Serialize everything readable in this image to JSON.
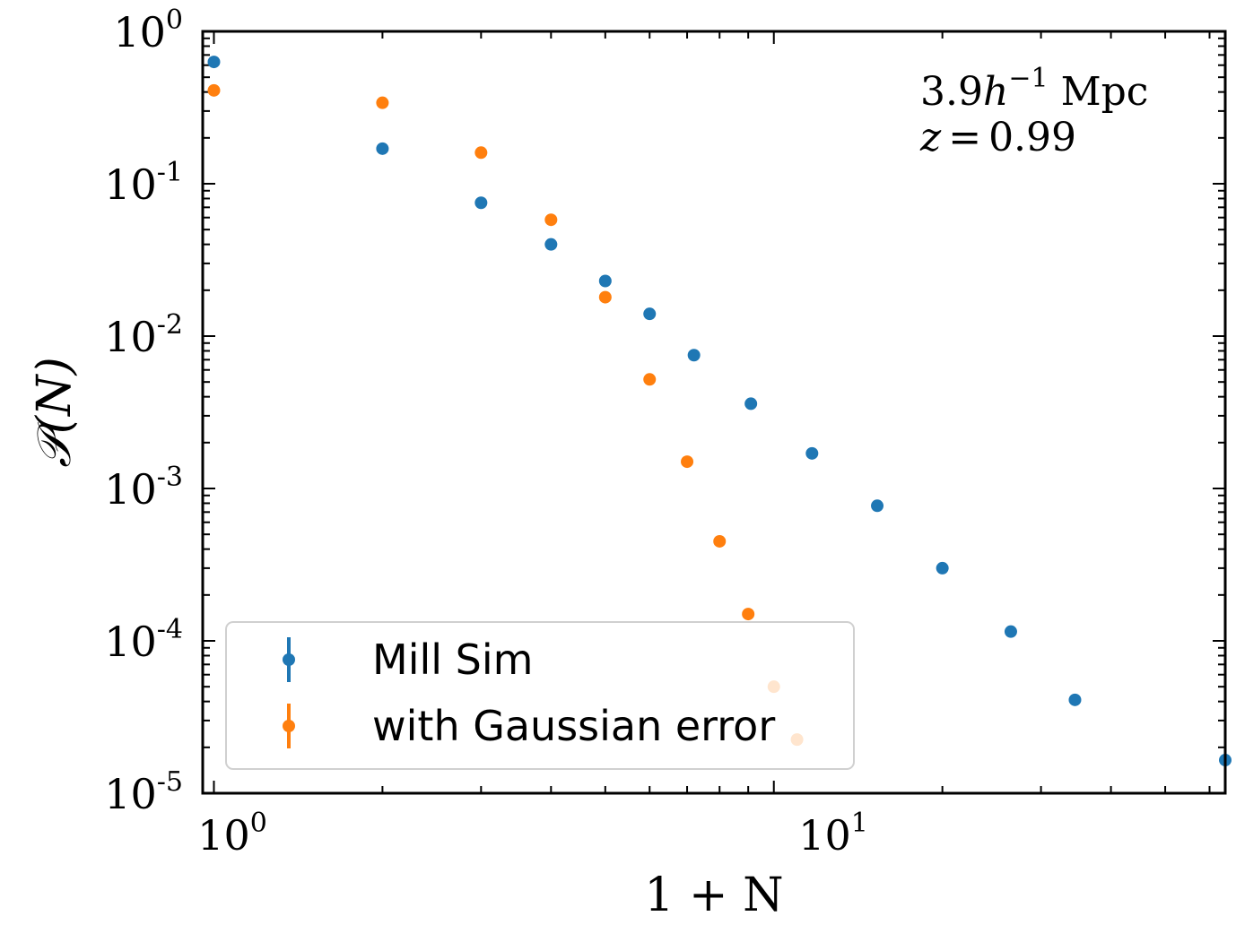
{
  "chart_data": {
    "type": "scatter",
    "xlabel": "1 + N",
    "ylabel": "𝒫(N)",
    "x_scale": "log",
    "y_scale": "log",
    "xlim": [
      0.955,
      64
    ],
    "ylim": [
      1e-05,
      1
    ],
    "x_ticks": [
      {
        "value": 1,
        "base": "10",
        "exp": "0"
      },
      {
        "value": 10,
        "base": "10",
        "exp": "1"
      }
    ],
    "y_ticks": [
      {
        "value": 1,
        "base": "10",
        "exp": "0"
      },
      {
        "value": 0.1,
        "base": "10",
        "exp": "-1"
      },
      {
        "value": 0.01,
        "base": "10",
        "exp": "-2"
      },
      {
        "value": 0.001,
        "base": "10",
        "exp": "-3"
      },
      {
        "value": 0.0001,
        "base": "10",
        "exp": "-4"
      },
      {
        "value": 1e-05,
        "base": "10",
        "exp": "-5"
      }
    ],
    "annotation": {
      "scale_value": "3.9",
      "scale_symbol": "h",
      "scale_exponent": "−1",
      "scale_unit": "Mpc",
      "redshift_symbol": "z",
      "redshift_value": "0.99"
    },
    "legend": {
      "position": "lower-left"
    },
    "series": [
      {
        "name": "Mill Sim",
        "color": "#1f77b4",
        "x": [
          1,
          2,
          3,
          4,
          5,
          6,
          7.2,
          9.1,
          11.7,
          15.3,
          20,
          26.5,
          34.5,
          64
        ],
        "y": [
          0.63,
          0.17,
          0.075,
          0.04,
          0.023,
          0.014,
          0.0075,
          0.0036,
          0.0017,
          0.00077,
          0.0003,
          0.000115,
          4.1e-05,
          1.65e-05
        ]
      },
      {
        "name": "with Gaussian error",
        "color": "#ff7f0e",
        "x": [
          1,
          2,
          3,
          4,
          5,
          6,
          7,
          8,
          9,
          10,
          11
        ],
        "y": [
          0.41,
          0.34,
          0.16,
          0.058,
          0.018,
          0.0052,
          0.0015,
          0.00045,
          0.00015,
          5e-05,
          2.25e-05
        ]
      }
    ]
  }
}
